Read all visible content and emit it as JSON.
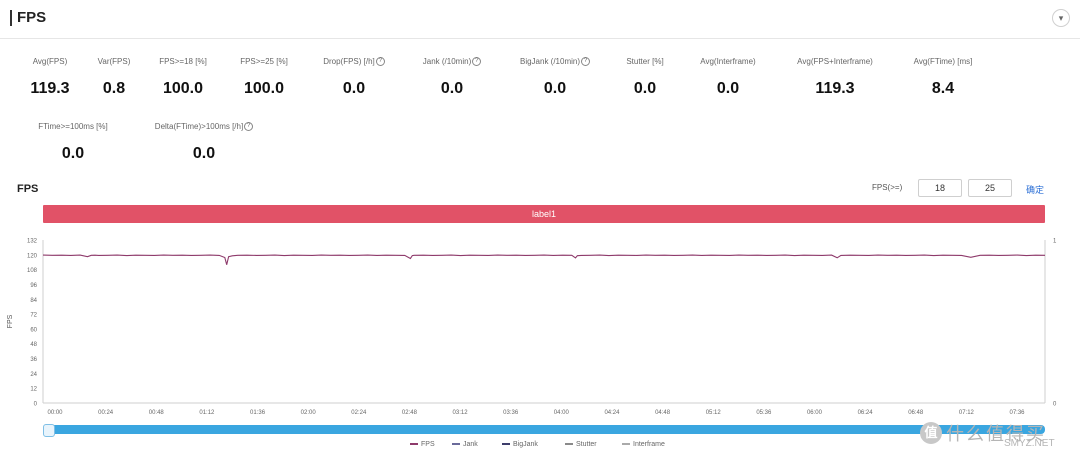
{
  "header": {
    "title": "FPS",
    "collapse_icon": "chevron-down-icon"
  },
  "metrics_row1": [
    {
      "label": "Avg(FPS)",
      "value": "119.3",
      "info": false
    },
    {
      "label": "Var(FPS)",
      "value": "0.8",
      "info": false
    },
    {
      "label": "FPS>=18 [%]",
      "value": "100.0",
      "info": false
    },
    {
      "label": "FPS>=25 [%]",
      "value": "100.0",
      "info": false
    },
    {
      "label": "Drop(FPS) [/h]",
      "value": "0.0",
      "info": true
    },
    {
      "label": "Jank (/10min)",
      "value": "0.0",
      "info": true
    },
    {
      "label": "BigJank (/10min)",
      "value": "0.0",
      "info": true
    },
    {
      "label": "Stutter [%]",
      "value": "0.0",
      "info": false
    },
    {
      "label": "Avg(Interframe)",
      "value": "0.0",
      "info": false
    },
    {
      "label": "Avg(FPS+Interframe)",
      "value": "119.3",
      "info": false
    },
    {
      "label": "Avg(FTime) [ms]",
      "value": "8.4",
      "info": false
    }
  ],
  "metrics_row2": [
    {
      "label": "FTime>=100ms [%]",
      "value": "0.0",
      "info": false
    },
    {
      "label": "Delta(FTime)>100ms [/h]",
      "value": "0.0",
      "info": true
    }
  ],
  "chart_section": {
    "title": "FPS",
    "filter_label": "FPS(>=)",
    "filter_low": "18",
    "filter_high": "25",
    "confirm_label": "确定",
    "label_bar": "label1"
  },
  "legend": [
    {
      "name": "FPS",
      "color": "#8e3a6b"
    },
    {
      "name": "Jank",
      "color": "#6a6a9a"
    },
    {
      "name": "BigJank",
      "color": "#3d3d6b"
    },
    {
      "name": "Stutter",
      "color": "#8a8a8a"
    },
    {
      "name": "Interframe",
      "color": "#aaaaaa"
    }
  ],
  "watermark": {
    "badge": "值",
    "cn": "什么值得买",
    "en": "SMYZ.NET"
  },
  "chart_data": {
    "type": "line",
    "title": "FPS",
    "ylabel": "FPS",
    "ylim": [
      0,
      132
    ],
    "y_ticks": [
      0,
      12,
      24,
      36,
      48,
      60,
      72,
      84,
      96,
      108,
      120,
      132
    ],
    "y_tick_labels": [
      "0",
      "12",
      "24",
      "36",
      "48",
      "60",
      "72",
      "84",
      "96",
      "108",
      "120",
      "132"
    ],
    "right_ylim": [
      0,
      1
    ],
    "right_ticks": [
      "0",
      "1"
    ],
    "x_tick_labels": [
      "00:00",
      "00:24",
      "00:48",
      "01:12",
      "01:36",
      "02:00",
      "02:24",
      "02:48",
      "03:12",
      "03:36",
      "04:00",
      "04:24",
      "04:48",
      "05:12",
      "05:36",
      "06:00",
      "06:24",
      "06:48",
      "07:12",
      "07:36"
    ],
    "grid": false,
    "legend_position": "bottom",
    "series": [
      {
        "name": "FPS",
        "color": "#8e3a6b",
        "x": [
          0,
          10,
          20,
          30,
          40,
          48,
          52,
          56,
          60,
          70,
          80,
          90,
          100,
          110,
          120,
          130,
          140,
          150,
          160,
          170,
          180,
          190,
          196,
          198,
          200,
          204,
          210,
          220,
          230,
          240,
          250,
          260,
          270,
          280,
          290,
          300,
          310,
          320,
          330,
          340,
          350,
          360,
          370,
          380,
          390,
          396,
          398,
          400,
          410,
          420,
          430,
          440,
          450,
          460,
          470,
          480,
          490,
          500,
          510,
          520,
          530,
          540,
          550,
          560,
          570,
          574,
          576,
          580,
          590,
          600,
          610,
          620,
          630,
          640,
          650,
          660,
          670,
          680,
          690,
          700,
          710,
          720,
          730,
          740,
          750,
          760,
          770,
          780,
          790,
          800,
          810,
          820,
          830,
          840,
          850,
          856,
          860,
          870,
          880,
          890,
          900,
          910,
          920,
          930,
          940,
          950,
          960,
          970,
          980,
          990,
          1000,
          1010,
          1020,
          1030,
          1040,
          1050,
          1060,
          1070,
          1080
        ],
        "y": [
          119.8,
          119.6,
          119.7,
          119.5,
          119.8,
          118.5,
          119.6,
          119.7,
          119.5,
          119.6,
          119.8,
          119.4,
          119.7,
          119.6,
          119.5,
          119.8,
          119.6,
          119.7,
          119.5,
          119.6,
          119.8,
          119.5,
          117.8,
          112.0,
          118.5,
          119.2,
          119.6,
          119.7,
          119.5,
          119.6,
          119.8,
          119.4,
          119.7,
          119.6,
          119.5,
          119.8,
          119.6,
          119.7,
          119.5,
          119.6,
          119.8,
          119.5,
          119.7,
          119.6,
          119.5,
          117.0,
          119.4,
          119.6,
          119.7,
          119.5,
          119.6,
          119.8,
          119.4,
          119.7,
          119.6,
          119.5,
          119.8,
          119.6,
          119.7,
          119.5,
          119.6,
          119.8,
          119.5,
          119.7,
          119.6,
          117.5,
          119.3,
          119.5,
          119.6,
          119.8,
          119.4,
          119.7,
          119.6,
          119.5,
          119.8,
          119.6,
          119.7,
          119.5,
          119.6,
          119.8,
          119.5,
          119.7,
          119.6,
          119.5,
          119.8,
          119.6,
          119.7,
          119.5,
          119.6,
          119.8,
          119.4,
          119.7,
          119.6,
          119.5,
          119.8,
          117.6,
          119.5,
          119.7,
          119.6,
          119.5,
          119.8,
          119.6,
          119.7,
          119.5,
          119.6,
          119.8,
          119.4,
          119.7,
          119.6,
          119.5,
          118.0,
          119.6,
          119.7,
          119.5,
          119.6,
          119.8,
          119.4,
          119.7,
          119.6
        ]
      }
    ]
  }
}
